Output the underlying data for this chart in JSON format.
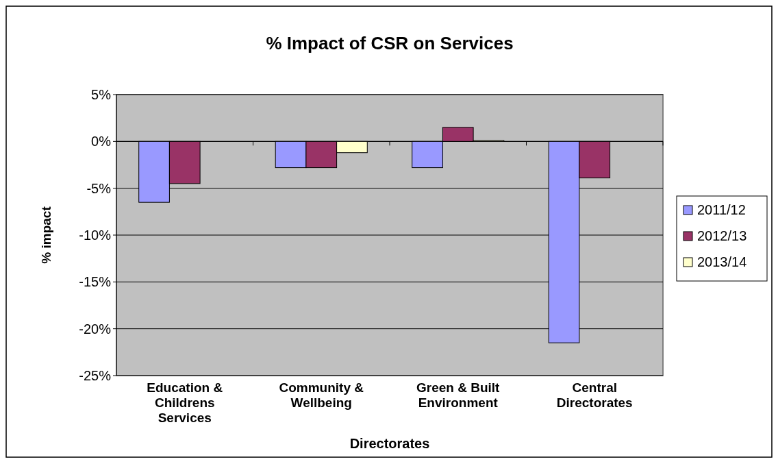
{
  "chart_data": {
    "type": "bar",
    "title": "% Impact of CSR on Services",
    "xlabel": "Directorates",
    "ylabel": "% impact",
    "categories": [
      "Education & Childrens Services",
      "Community & Wellbeing",
      "Green & Built Environment",
      "Central Directorates"
    ],
    "series": [
      {
        "name": "2011/12",
        "color": "#9999ff",
        "values": [
          -6.5,
          -2.8,
          -2.8,
          -21.5
        ]
      },
      {
        "name": "2012/13",
        "color": "#993366",
        "values": [
          -4.5,
          -2.8,
          1.5,
          -3.9
        ]
      },
      {
        "name": "2013/14",
        "color": "#ffffcc",
        "values": [
          null,
          -1.2,
          0.1,
          null
        ]
      }
    ],
    "ylim": [
      -25,
      5
    ],
    "yticks": [
      {
        "value": 5,
        "label": "5%"
      },
      {
        "value": 0,
        "label": "0%"
      },
      {
        "value": -5,
        "label": "-5%"
      },
      {
        "value": -10,
        "label": "-10%"
      },
      {
        "value": -15,
        "label": "-15%"
      },
      {
        "value": -20,
        "label": "-20%"
      },
      {
        "value": -25,
        "label": "-25%"
      }
    ],
    "grid": "y",
    "legend": "right"
  }
}
